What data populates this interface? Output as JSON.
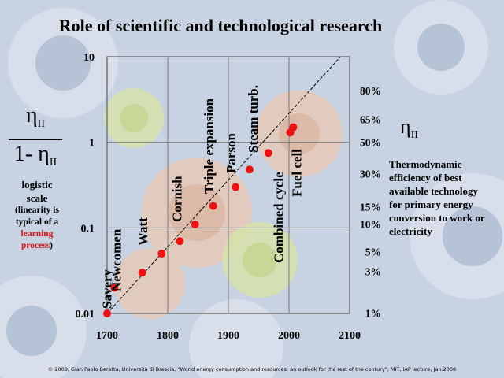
{
  "title": "Role of scientific and technological research",
  "credit": "© 2008, Gian Paolo Beretta, Università di Brescia, \"World energy consumption and resources: an outlook for the rest of the century\", MIT, IAP lecture, Jan.2008",
  "left_axis_label": {
    "symbol": "η",
    "subscript": "II",
    "den_prefix": "1- "
  },
  "scale_note": {
    "line1": "logistic",
    "line2": "scale",
    "line3": "(linearity is",
    "line4": "typical of a",
    "highlight": "learning",
    "line5": "process",
    "line5_suffix": ")"
  },
  "right_axis_label": {
    "symbol": "η",
    "subscript": "II"
  },
  "description": "Thermodynamic efficiency of best available technology for primary energy conversion to work or electricity",
  "colors": {
    "points": "#ee1111",
    "grid": "#777777",
    "accent": "#e01010"
  },
  "chart_data": {
    "type": "scatter",
    "x_ticks": [
      "1700",
      "1800",
      "1900",
      "2000",
      "2100"
    ],
    "xlim": [
      1700,
      2100
    ],
    "y_scale": "log",
    "ylim": [
      0.01,
      10
    ],
    "y_ticks_left": [
      "10",
      "1",
      "0.1",
      "0.01"
    ],
    "y_ticks_right": [
      "80%",
      "65%",
      "50%",
      "30%",
      "15%",
      "10%",
      "5%",
      "3%",
      "1%"
    ],
    "trend_line": {
      "from": [
        1700,
        0.01
      ],
      "to": [
        2085,
        10
      ]
    },
    "points": [
      {
        "x": 1700,
        "y": 0.01
      },
      {
        "x": 1712,
        "y": 0.02
      },
      {
        "x": 1758,
        "y": 0.03
      },
      {
        "x": 1790,
        "y": 0.05
      },
      {
        "x": 1820,
        "y": 0.07
      },
      {
        "x": 1845,
        "y": 0.11
      },
      {
        "x": 1875,
        "y": 0.18
      },
      {
        "x": 1912,
        "y": 0.3
      },
      {
        "x": 1935,
        "y": 0.48
      },
      {
        "x": 1966,
        "y": 0.75
      },
      {
        "x": 2002,
        "y": 1.3
      },
      {
        "x": 2007,
        "y": 1.5
      }
    ],
    "annotations": [
      {
        "text": "Savery",
        "x": 1707
      },
      {
        "text": "Newcomen",
        "x": 1723
      },
      {
        "text": "Watt",
        "x": 1766
      },
      {
        "text": "Cornish",
        "x": 1823
      },
      {
        "text": "Triple expansion",
        "x": 1875
      },
      {
        "text": "Parson",
        "x": 1912
      },
      {
        "text": "Steam turb.",
        "x": 1948
      },
      {
        "text": "Combined cycle",
        "x": 1990
      },
      {
        "text": "Fuel cell",
        "x": 2020
      }
    ]
  }
}
